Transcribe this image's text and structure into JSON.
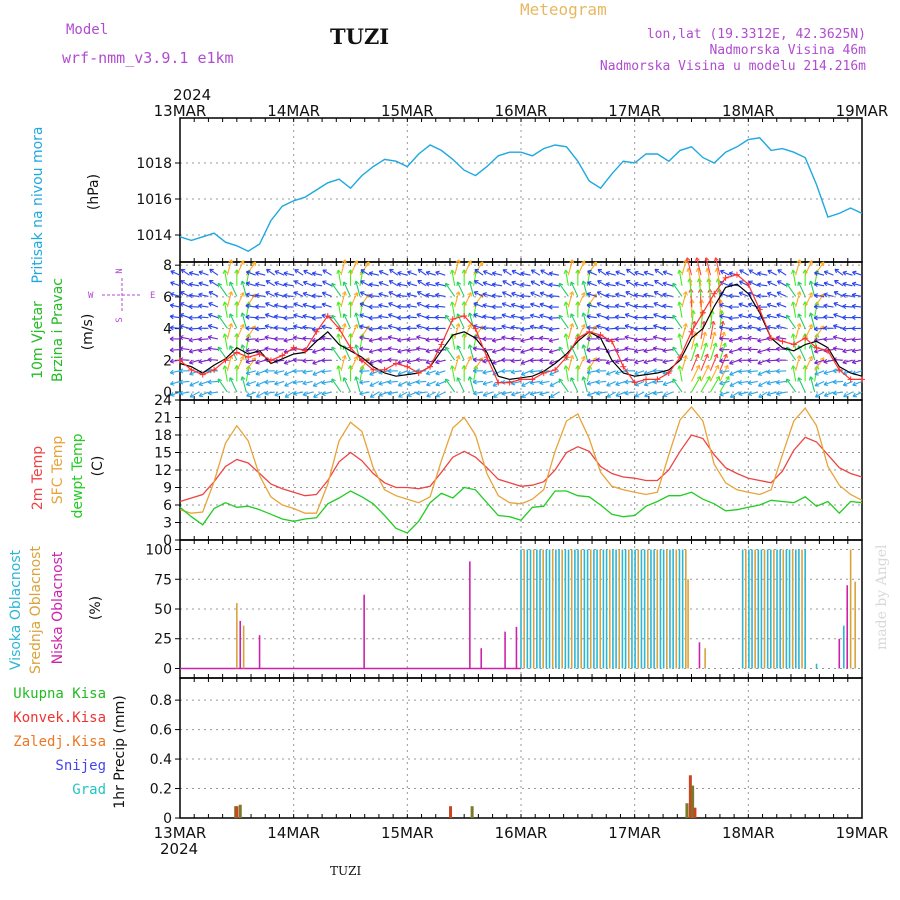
{
  "header": {
    "model_label": "Model",
    "model_name": "wrf-nmm_v3.9.1  e1km",
    "title": "TUZI",
    "product": "Meteogram",
    "lonlat": "lon,lat (19.3312E, 42.3625N)",
    "elev": "Nadmorska Visina 46m",
    "elev_model": "Nadmorska Visina u modelu 214.216m",
    "watermark": "made by Angel",
    "footer_title": "TUZI"
  },
  "time_axis": {
    "year": "2024",
    "labels": [
      "13MAR",
      "14MAR",
      "15MAR",
      "16MAR",
      "17MAR",
      "18MAR",
      "19MAR"
    ]
  },
  "colors": {
    "pressure": "#1ea8e0",
    "wind_mean": "#000000",
    "wind_gust": "#ff3030",
    "t2m": "#ee4444",
    "tsfc": "#e8a33a",
    "dewpt": "#22cc22",
    "cloud_high": "#2bb6d6",
    "cloud_mid": "#d9a33a",
    "cloud_low": "#cc22aa",
    "precip_total": "#22bb22",
    "precip_conv": "#ee3333",
    "precip_frozen": "#ee7722",
    "snow": "#4444ee",
    "hail": "#22c4c4",
    "header_purple": "#b04cd0",
    "header_orange": "#e8b860"
  },
  "compass": {
    "n": "N",
    "s": "S",
    "w": "W",
    "e": "E"
  },
  "panels": {
    "pressure": {
      "label1": "Pritisak na nivou mora",
      "unit": "(hPa)",
      "ticks": [
        "1014",
        "1016",
        "1018"
      ],
      "tick_values": [
        1014,
        1016,
        1018
      ],
      "ylim": [
        1012.5,
        1020.5
      ]
    },
    "wind": {
      "label1": "10m Vjetar",
      "label2": "Brzina i Pravac",
      "unit": "(m/s)",
      "ticks": [
        "0",
        "2",
        "4",
        "6",
        "8"
      ],
      "tick_values": [
        0,
        2,
        4,
        6,
        8
      ],
      "ylim": [
        -0.5,
        8.2
      ]
    },
    "temp": {
      "label1": "2m Temp",
      "label2": "SFC Temp",
      "label3": "dewpt Temp",
      "unit": "(C)",
      "ticks": [
        "0",
        "3",
        "6",
        "9",
        "12",
        "15",
        "18",
        "21",
        "24"
      ],
      "tick_values": [
        0,
        3,
        6,
        9,
        12,
        15,
        18,
        21,
        24
      ],
      "ylim": [
        0,
        24
      ]
    },
    "cloud": {
      "label1": "Visoka Oblacnost",
      "label2": "Srednja Oblacnost",
      "label3": "Niska Oblacnost",
      "unit": "(%)",
      "ticks": [
        "0",
        "25",
        "50",
        "75",
        "100"
      ],
      "tick_values": [
        0,
        25,
        50,
        75,
        100
      ],
      "ylim": [
        -8,
        108
      ]
    },
    "precip": {
      "legend": [
        "Ukupna Kisa",
        "Konvek.Kisa",
        "Zaledj.Kisa",
        "Snijeg",
        "Grad"
      ],
      "unit": "1hr Precip (mm)",
      "ticks": [
        "0",
        "0.2",
        "0.4",
        "0.6",
        "0.8"
      ],
      "tick_values": [
        0,
        0.2,
        0.4,
        0.6,
        0.8
      ],
      "ylim": [
        0,
        0.95
      ]
    }
  },
  "chart_data": [
    {
      "type": "line",
      "title": "",
      "ylabel": "Pritisak na nivou mora (hPa)",
      "x_unit": "days since 13MAR 00UTC",
      "series": [
        {
          "name": "Pritisak na nivou mora",
          "x": [
            0,
            0.1,
            0.2,
            0.3,
            0.4,
            0.5,
            0.6,
            0.7,
            0.8,
            0.9,
            1.0,
            1.1,
            1.2,
            1.3,
            1.4,
            1.5,
            1.6,
            1.7,
            1.8,
            1.9,
            2.0,
            2.1,
            2.2,
            2.3,
            2.4,
            2.5,
            2.6,
            2.7,
            2.8,
            2.9,
            3.0,
            3.1,
            3.2,
            3.3,
            3.4,
            3.5,
            3.6,
            3.7,
            3.8,
            3.9,
            4.0,
            4.1,
            4.2,
            4.3,
            4.4,
            4.5,
            4.6,
            4.7,
            4.8,
            4.9,
            5.0,
            5.1,
            5.2,
            5.3,
            5.4,
            5.5,
            5.6,
            5.7,
            5.8,
            5.9,
            6.0
          ],
          "values": [
            1013.9,
            1013.7,
            1013.9,
            1014.1,
            1013.6,
            1013.4,
            1013.1,
            1013.5,
            1014.8,
            1015.6,
            1015.9,
            1016.1,
            1016.5,
            1016.9,
            1017.1,
            1016.6,
            1017.3,
            1017.8,
            1018.2,
            1018.1,
            1017.8,
            1018.5,
            1019.0,
            1018.7,
            1018.2,
            1017.6,
            1017.3,
            1017.8,
            1018.4,
            1018.6,
            1018.6,
            1018.4,
            1018.8,
            1019.0,
            1018.9,
            1018.1,
            1017.0,
            1016.6,
            1017.4,
            1018.1,
            1018.0,
            1018.5,
            1018.5,
            1018.1,
            1018.7,
            1018.9,
            1018.3,
            1018.0,
            1018.6,
            1018.9,
            1019.3,
            1019.4,
            1018.7,
            1018.8,
            1018.6,
            1018.3,
            1016.8,
            1015.0,
            1015.2,
            1015.5,
            1015.2
          ]
        }
      ]
    },
    {
      "type": "line",
      "ylabel": "10m Vjetar Brzina i Pravac (m/s)",
      "x_unit": "days since 13MAR 00UTC",
      "series": [
        {
          "name": "mean",
          "x": [
            0,
            0.1,
            0.2,
            0.3,
            0.4,
            0.5,
            0.6,
            0.7,
            0.8,
            0.9,
            1.0,
            1.1,
            1.2,
            1.3,
            1.4,
            1.5,
            1.6,
            1.7,
            1.8,
            1.9,
            2.0,
            2.1,
            2.2,
            2.3,
            2.4,
            2.5,
            2.6,
            2.7,
            2.8,
            2.9,
            3.0,
            3.1,
            3.2,
            3.3,
            3.4,
            3.5,
            3.6,
            3.7,
            3.8,
            3.9,
            4.0,
            4.1,
            4.2,
            4.3,
            4.4,
            4.5,
            4.6,
            4.7,
            4.8,
            4.9,
            5.0,
            5.1,
            5.2,
            5.3,
            5.4,
            5.5,
            5.6,
            5.7,
            5.8,
            5.9,
            6.0
          ],
          "values": [
            1.8,
            1.6,
            1.2,
            1.7,
            2.1,
            2.8,
            2.4,
            2.6,
            1.8,
            2.1,
            2.4,
            2.5,
            3.2,
            3.8,
            3.0,
            2.6,
            2.2,
            1.6,
            1.2,
            1.0,
            1.1,
            1.2,
            1.6,
            2.6,
            3.6,
            3.8,
            3.4,
            2.5,
            1.0,
            0.8,
            0.9,
            1.0,
            1.3,
            1.8,
            2.4,
            3.2,
            3.8,
            3.4,
            2.0,
            1.2,
            1.0,
            1.1,
            1.2,
            1.4,
            2.0,
            3.4,
            4.0,
            5.4,
            6.6,
            6.8,
            6.2,
            5.0,
            3.4,
            2.8,
            2.6,
            3.0,
            3.2,
            2.8,
            1.6,
            1.2,
            1.0
          ]
        },
        {
          "name": "gust",
          "x": [
            0,
            0.1,
            0.2,
            0.3,
            0.4,
            0.5,
            0.6,
            0.7,
            0.8,
            0.9,
            1.0,
            1.1,
            1.2,
            1.3,
            1.4,
            1.5,
            1.6,
            1.7,
            1.8,
            1.9,
            2.0,
            2.1,
            2.2,
            2.3,
            2.4,
            2.5,
            2.6,
            2.7,
            2.8,
            2.9,
            3.0,
            3.1,
            3.2,
            3.3,
            3.4,
            3.5,
            3.6,
            3.7,
            3.8,
            3.9,
            4.0,
            4.1,
            4.2,
            4.3,
            4.4,
            4.5,
            4.6,
            4.7,
            4.8,
            4.9,
            5.0,
            5.1,
            5.2,
            5.3,
            5.4,
            5.5,
            5.6,
            5.7,
            5.8,
            5.9,
            6.0
          ],
          "values": [
            2.0,
            1.4,
            1.1,
            1.4,
            2.0,
            2.5,
            2.2,
            2.4,
            2.0,
            2.3,
            2.8,
            2.6,
            3.8,
            4.8,
            4.0,
            2.8,
            2.0,
            1.4,
            1.4,
            1.8,
            1.6,
            1.2,
            1.6,
            3.0,
            4.6,
            4.8,
            4.0,
            2.2,
            0.6,
            0.6,
            0.8,
            0.8,
            1.2,
            1.4,
            2.2,
            3.4,
            3.8,
            3.6,
            3.2,
            1.6,
            0.6,
            0.8,
            0.8,
            1.2,
            2.2,
            3.8,
            5.0,
            6.2,
            7.2,
            7.4,
            6.8,
            5.2,
            3.4,
            3.2,
            3.0,
            3.4,
            2.8,
            2.6,
            1.4,
            0.8,
            0.8
          ]
        }
      ]
    },
    {
      "type": "line",
      "ylabel": "Temp (C)",
      "x_unit": "days since 13MAR 00UTC",
      "series": [
        {
          "name": "2m Temp",
          "x": [
            0,
            0.1,
            0.2,
            0.3,
            0.4,
            0.5,
            0.6,
            0.7,
            0.8,
            0.9,
            1.0,
            1.1,
            1.2,
            1.3,
            1.4,
            1.5,
            1.6,
            1.7,
            1.8,
            1.9,
            2.0,
            2.1,
            2.2,
            2.3,
            2.4,
            2.5,
            2.6,
            2.7,
            2.8,
            2.9,
            3.0,
            3.1,
            3.2,
            3.3,
            3.4,
            3.5,
            3.6,
            3.7,
            3.8,
            3.9,
            4.0,
            4.1,
            4.2,
            4.3,
            4.4,
            4.5,
            4.6,
            4.7,
            4.8,
            4.9,
            5.0,
            5.1,
            5.2,
            5.3,
            5.4,
            5.5,
            5.6,
            5.7,
            5.8,
            5.9,
            6.0
          ],
          "values": [
            6.6,
            7.2,
            7.8,
            10.0,
            12.6,
            13.8,
            13.2,
            11.4,
            9.6,
            8.8,
            8.2,
            7.6,
            7.8,
            10.2,
            13.4,
            15.0,
            13.6,
            11.4,
            9.8,
            9.0,
            9.0,
            8.8,
            9.2,
            11.6,
            14.2,
            15.2,
            14.2,
            12.4,
            10.4,
            9.8,
            9.2,
            9.4,
            10.0,
            12.0,
            15.0,
            16.0,
            15.2,
            12.6,
            11.4,
            10.8,
            10.6,
            10.2,
            10.2,
            12.0,
            15.2,
            18.0,
            17.4,
            14.6,
            12.4,
            11.4,
            10.6,
            10.2,
            9.8,
            11.8,
            15.4,
            17.6,
            16.8,
            14.6,
            12.4,
            11.4,
            10.8
          ]
        },
        {
          "name": "SFC Temp",
          "x": [
            0,
            0.1,
            0.2,
            0.3,
            0.4,
            0.5,
            0.6,
            0.7,
            0.8,
            0.9,
            1.0,
            1.1,
            1.2,
            1.3,
            1.4,
            1.5,
            1.6,
            1.7,
            1.8,
            1.9,
            2.0,
            2.1,
            2.2,
            2.3,
            2.4,
            2.5,
            2.6,
            2.7,
            2.8,
            2.9,
            3.0,
            3.1,
            3.2,
            3.3,
            3.4,
            3.5,
            3.6,
            3.7,
            3.8,
            3.9,
            4.0,
            4.1,
            4.2,
            4.3,
            4.4,
            4.5,
            4.6,
            4.7,
            4.8,
            4.9,
            5.0,
            5.1,
            5.2,
            5.3,
            5.4,
            5.5,
            5.6,
            5.7,
            5.8,
            5.9,
            6.0
          ],
          "values": [
            5.2,
            4.6,
            4.8,
            10.0,
            16.6,
            19.6,
            17.0,
            11.0,
            7.4,
            6.0,
            5.4,
            4.6,
            4.6,
            9.6,
            17.0,
            20.2,
            18.6,
            12.4,
            8.6,
            7.6,
            7.0,
            6.4,
            7.4,
            13.6,
            19.2,
            21.0,
            18.0,
            11.4,
            7.6,
            6.4,
            6.2,
            7.0,
            8.6,
            15.2,
            20.4,
            21.6,
            17.4,
            11.6,
            9.2,
            8.6,
            8.2,
            7.8,
            8.2,
            14.6,
            20.6,
            22.8,
            20.4,
            13.0,
            9.8,
            8.6,
            8.2,
            7.8,
            8.6,
            14.6,
            20.4,
            22.6,
            19.6,
            12.6,
            9.4,
            7.8,
            6.8
          ]
        },
        {
          "name": "dewpt Temp",
          "x": [
            0,
            0.1,
            0.2,
            0.3,
            0.4,
            0.5,
            0.6,
            0.7,
            0.8,
            0.9,
            1.0,
            1.1,
            1.2,
            1.3,
            1.4,
            1.5,
            1.6,
            1.7,
            1.8,
            1.9,
            2.0,
            2.1,
            2.2,
            2.3,
            2.4,
            2.5,
            2.6,
            2.7,
            2.8,
            2.9,
            3.0,
            3.1,
            3.2,
            3.3,
            3.4,
            3.5,
            3.6,
            3.7,
            3.8,
            3.9,
            4.0,
            4.1,
            4.2,
            4.3,
            4.4,
            4.5,
            4.6,
            4.7,
            4.8,
            4.9,
            5.0,
            5.1,
            5.2,
            5.3,
            5.4,
            5.5,
            5.6,
            5.7,
            5.8,
            5.9,
            6.0
          ],
          "values": [
            5.6,
            4.0,
            2.6,
            5.4,
            6.4,
            5.6,
            5.8,
            5.2,
            4.4,
            3.6,
            3.2,
            3.6,
            3.8,
            6.2,
            7.2,
            8.4,
            7.4,
            6.2,
            4.2,
            2.0,
            1.2,
            3.2,
            6.4,
            8.0,
            7.2,
            9.0,
            8.6,
            6.4,
            4.2,
            4.0,
            3.4,
            5.6,
            5.8,
            8.4,
            8.4,
            7.6,
            7.4,
            6.0,
            4.4,
            4.0,
            4.2,
            5.8,
            6.6,
            7.6,
            7.6,
            8.2,
            7.0,
            6.2,
            5.0,
            5.2,
            5.6,
            6.0,
            6.8,
            6.6,
            6.4,
            7.4,
            5.8,
            6.6,
            4.6,
            6.6,
            6.4
          ]
        }
      ]
    },
    {
      "type": "bar",
      "ylabel": "Oblacnost (%)",
      "x_unit": "days since 13MAR 00UTC",
      "sparse_bars": [
        {
          "series": "mid",
          "x": 0.5,
          "value": 55
        },
        {
          "series": "low",
          "x": 0.53,
          "value": 40
        },
        {
          "series": "mid",
          "x": 0.56,
          "value": 36
        },
        {
          "series": "low",
          "x": 0.7,
          "value": 28
        },
        {
          "series": "low",
          "x": 1.62,
          "value": 62
        },
        {
          "series": "low",
          "x": 2.55,
          "value": 90
        },
        {
          "series": "low",
          "x": 2.65,
          "value": 17
        },
        {
          "series": "low",
          "x": 2.86,
          "value": 31
        },
        {
          "series": "low",
          "x": 2.96,
          "value": 35
        },
        {
          "series": "mid",
          "x": 4.47,
          "value": 75
        },
        {
          "series": "low",
          "x": 4.57,
          "value": 22
        },
        {
          "series": "mid",
          "x": 4.62,
          "value": 17
        },
        {
          "series": "high",
          "x": 5.6,
          "value": 4
        },
        {
          "series": "low",
          "x": 5.8,
          "value": 25
        },
        {
          "series": "high",
          "x": 5.84,
          "value": 36
        },
        {
          "series": "low",
          "x": 5.87,
          "value": 70
        },
        {
          "series": "mid",
          "x": 5.9,
          "value": 100
        },
        {
          "series": "mid",
          "x": 5.94,
          "value": 73
        }
      ],
      "dense_blocks": [
        {
          "x0": 3.0,
          "x1": 4.45,
          "value": 100
        },
        {
          "x0": 4.95,
          "x1": 5.5,
          "value": 100
        }
      ]
    },
    {
      "type": "bar",
      "ylabel": "1hr Precip (mm)",
      "x_unit": "days since 13MAR 00UTC",
      "bars": [
        {
          "series": "total",
          "x": 0.49,
          "value": 0.08
        },
        {
          "series": "conv",
          "x": 0.5,
          "value": 0.08
        },
        {
          "series": "total",
          "x": 0.53,
          "value": 0.09
        },
        {
          "series": "conv",
          "x": 2.38,
          "value": 0.08
        },
        {
          "series": "total",
          "x": 2.57,
          "value": 0.08
        },
        {
          "series": "total",
          "x": 4.46,
          "value": 0.1
        },
        {
          "series": "conv",
          "x": 4.49,
          "value": 0.29
        },
        {
          "series": "total",
          "x": 4.51,
          "value": 0.22
        },
        {
          "series": "conv",
          "x": 4.53,
          "value": 0.07
        }
      ]
    }
  ]
}
